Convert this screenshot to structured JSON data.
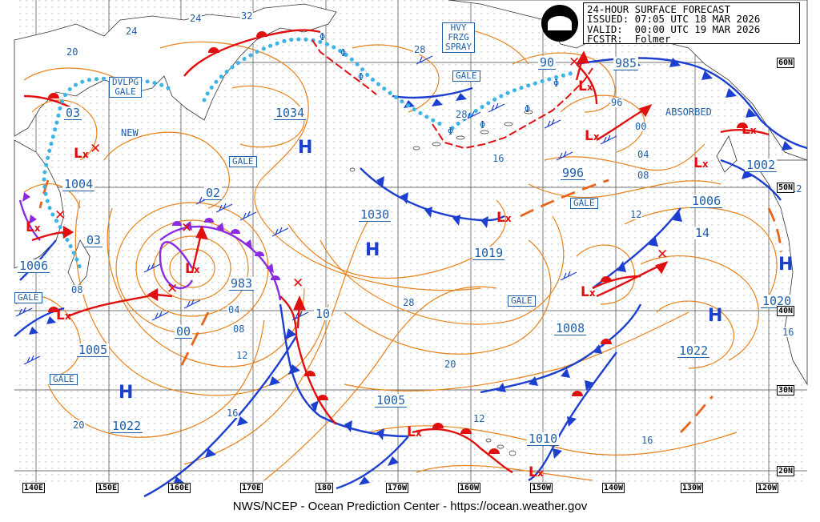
{
  "header": {
    "line1": "24-HOUR SURFACE FORECAST",
    "line2": "ISSUED: 07:05 UTC 18 MAR 2026",
    "line3": "VALID:  00:00 UTC 19 MAR 2026",
    "line4": "FCSTR:  Folmer",
    "logo_text": "NOAA"
  },
  "footer": "NWS/NCEP - Ocean Prediction Center - https://ocean.weather.gov",
  "longitudes": [
    "140E",
    "150E",
    "160E",
    "170E",
    "180",
    "170W",
    "160W",
    "150W",
    "140W",
    "130W",
    "120W"
  ],
  "latitudes": [
    "60N",
    "50N",
    "40N",
    "30N",
    "20N"
  ],
  "pressure_centers": {
    "h1034": "1034",
    "h1030": "1030",
    "h1019": "1019",
    "h1022w": "1022",
    "h1022e": "1022",
    "h1020": "1020",
    "l1004": "1004",
    "l1006w": "1006",
    "l1005w": "1005",
    "l983": "983",
    "l1005c": "1005",
    "l1010": "1010",
    "l1008": "1008",
    "l996": "996",
    "l985": "985",
    "l1002": "1002",
    "l1006e": "1006",
    "l90": "90",
    "l14": "14",
    "l10": "10",
    "l02": "02",
    "l03a": "03",
    "l03b": "03",
    "l00": "00"
  },
  "isobar_labels": [
    "24",
    "28",
    "32",
    "20",
    "24",
    "20",
    "16",
    "08",
    "04",
    "08",
    "12",
    "16",
    "20",
    "28",
    "12",
    "16",
    "12",
    "04",
    "08",
    "00",
    "96",
    "16",
    "12"
  ],
  "boxed_labels": {
    "dvlpg_gale": "DVLPG\nGALE",
    "hvy_frzg": "HVY\nFRZG\nSPRAY",
    "gale_nw": "GALE",
    "gale_c": "GALE",
    "gale_west": "GALE",
    "gale_sw": "GALE",
    "gale_e": "GALE",
    "gale_mid": "GALE",
    "gale_ne": "GALE"
  },
  "free_text": {
    "new": "NEW",
    "absorbed": "ABSORBED"
  },
  "symbols": {
    "high": "H",
    "low": "L"
  },
  "colors": {
    "isobar": "#e8821a",
    "warm_front": "#e01010",
    "cold_front": "#1c3fd0",
    "occluded_front": "#8a2be2",
    "ice_edge": "#3cb4e6",
    "label_text": "#1f5fa8"
  }
}
